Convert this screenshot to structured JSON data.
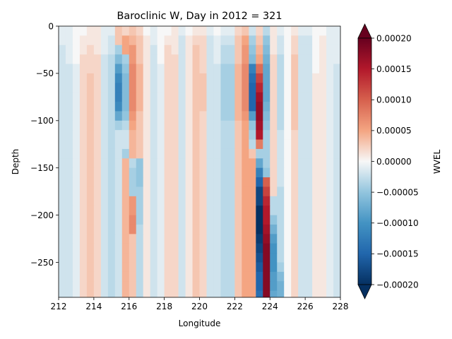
{
  "chart_data": {
    "type": "heatmap",
    "title": "Baroclinic W, Day in 2012 = 321",
    "xlabel": "Longitude",
    "ylabel": "Depth",
    "xlim": [
      212,
      228
    ],
    "ylim": [
      -287,
      0
    ],
    "x_ticks": [
      212,
      214,
      216,
      218,
      220,
      222,
      224,
      226,
      228
    ],
    "x_tick_labels": [
      "212",
      "214",
      "216",
      "218",
      "220",
      "222",
      "224",
      "226",
      "228"
    ],
    "y_ticks": [
      0,
      -50,
      -100,
      -150,
      -200,
      -250
    ],
    "y_tick_labels": [
      "0",
      "−50",
      "−100",
      "−150",
      "−200",
      "−250"
    ],
    "colormap": "RdBu_r",
    "colorbar": {
      "label": "WVEL",
      "vmin": -0.0002,
      "vmax": 0.0002,
      "extend": "both",
      "ticks": [
        0.0002,
        0.00015,
        0.0001,
        5e-05,
        0,
        -5e-05,
        -0.0001,
        -0.00015,
        -0.0002
      ],
      "tick_labels": [
        "0.00020",
        "0.00015",
        "0.00010",
        "0.00005",
        "0.00000",
        "−0.00005",
        "−0.00010",
        "−0.00015",
        "−0.00020"
      ]
    },
    "x_columns": [
      212.2,
      212.6,
      213.0,
      213.4,
      213.8,
      214.2,
      214.6,
      215.0,
      215.4,
      215.8,
      216.2,
      216.6,
      217.0,
      217.4,
      217.8,
      218.2,
      218.6,
      219.0,
      219.4,
      219.8,
      220.2,
      220.6,
      221.0,
      221.4,
      221.8,
      222.2,
      222.6,
      223.0,
      223.4,
      223.8,
      224.2,
      224.6,
      225.0,
      225.4,
      225.8,
      226.2,
      226.6,
      227.0,
      227.4,
      227.8
    ],
    "depth_layers": [
      -5,
      -15,
      -25,
      -35,
      -45,
      -55,
      -65,
      -75,
      -85,
      -95,
      -105,
      -115,
      -125,
      -135,
      -145,
      -155,
      -165,
      -175,
      -185,
      -195,
      -205,
      -215,
      -225,
      -235,
      -245,
      -255,
      -265,
      -275,
      -285
    ],
    "wvel_x1e5": [
      [
        -1,
        -1,
        0,
        0,
        1,
        1,
        -1,
        -1,
        3,
        2,
        3,
        2,
        0,
        -1,
        0,
        0,
        1,
        -1,
        0,
        1,
        1,
        -1,
        0,
        -1,
        -1,
        2,
        3,
        -2,
        2,
        -3,
        1,
        -1,
        0,
        1,
        -1,
        -1,
        0,
        0,
        -1,
        -1
      ],
      [
        -1,
        -1,
        0,
        1,
        1,
        1,
        -1,
        -2,
        3,
        5,
        4,
        3,
        1,
        -1,
        0,
        1,
        1,
        -2,
        1,
        2,
        2,
        -2,
        -1,
        -2,
        -2,
        3,
        5,
        -4,
        3,
        -5,
        1,
        -2,
        0,
        2,
        -2,
        -2,
        0,
        1,
        -1,
        -1
      ],
      [
        -2,
        -1,
        0,
        1,
        2,
        1,
        -1,
        -2,
        -4,
        5,
        6,
        3,
        1,
        -2,
        0,
        2,
        1,
        -2,
        1,
        3,
        2,
        -2,
        -1,
        -3,
        -3,
        3,
        6,
        -5,
        4,
        -6,
        1,
        -2,
        0,
        2,
        -2,
        -2,
        0,
        1,
        -1,
        -1
      ],
      [
        -2,
        -1,
        0,
        2,
        2,
        2,
        -2,
        -3,
        -6,
        -4,
        6,
        3,
        1,
        -2,
        0,
        2,
        2,
        -2,
        1,
        3,
        2,
        -2,
        -1,
        -3,
        -3,
        3,
        6,
        -6,
        5,
        -7,
        2,
        -3,
        0,
        3,
        -2,
        -2,
        0,
        1,
        -1,
        -1
      ],
      [
        -2,
        -2,
        -1,
        2,
        2,
        2,
        -2,
        -3,
        -9,
        -5,
        7,
        4,
        1,
        -2,
        -1,
        2,
        2,
        -2,
        1,
        3,
        2,
        -2,
        -2,
        -4,
        -4,
        4,
        7,
        -12,
        9,
        -8,
        2,
        -3,
        0,
        3,
        -2,
        -2,
        0,
        1,
        -1,
        -2
      ],
      [
        -2,
        -2,
        -1,
        2,
        3,
        2,
        -2,
        -3,
        -11,
        -6,
        7,
        4,
        1,
        -2,
        -1,
        2,
        2,
        -2,
        1,
        3,
        3,
        -2,
        -2,
        -4,
        -4,
        4,
        7,
        -14,
        12,
        -8,
        2,
        -3,
        0,
        3,
        -2,
        -2,
        1,
        1,
        -1,
        -2
      ],
      [
        -2,
        -2,
        -1,
        2,
        3,
        2,
        -2,
        -3,
        -12,
        -6,
        7,
        4,
        1,
        -2,
        -1,
        2,
        2,
        -2,
        1,
        3,
        3,
        -2,
        -2,
        -4,
        -4,
        4,
        7,
        -15,
        14,
        -8,
        2,
        -3,
        0,
        3,
        -2,
        -2,
        1,
        1,
        -1,
        -2
      ],
      [
        -2,
        -2,
        -1,
        2,
        3,
        2,
        -2,
        -3,
        -12,
        -6,
        7,
        4,
        1,
        -2,
        -1,
        2,
        2,
        -2,
        1,
        3,
        3,
        -2,
        -2,
        -4,
        -4,
        4,
        7,
        -15,
        16,
        -8,
        2,
        -3,
        0,
        3,
        -2,
        -2,
        1,
        1,
        -1,
        -2
      ],
      [
        -2,
        -2,
        -1,
        2,
        3,
        2,
        -2,
        -3,
        -11,
        -6,
        7,
        4,
        1,
        -2,
        -1,
        2,
        2,
        -2,
        1,
        3,
        3,
        -2,
        -2,
        -4,
        -4,
        4,
        7,
        -15,
        17,
        -7,
        2,
        -3,
        0,
        3,
        -2,
        -2,
        1,
        1,
        -1,
        -2
      ],
      [
        -2,
        -2,
        -1,
        2,
        3,
        2,
        -2,
        -3,
        -8,
        -5,
        6,
        3,
        1,
        -2,
        -1,
        2,
        2,
        -2,
        1,
        3,
        2,
        -2,
        -2,
        -4,
        -4,
        4,
        6,
        -9,
        17,
        -6,
        2,
        -3,
        0,
        3,
        -2,
        -2,
        1,
        1,
        -1,
        -2
      ],
      [
        -2,
        -2,
        -1,
        2,
        3,
        2,
        -2,
        -3,
        -4,
        -3,
        5,
        3,
        1,
        -2,
        -1,
        2,
        2,
        -2,
        1,
        3,
        2,
        -2,
        -2,
        -3,
        -3,
        3,
        5,
        -5,
        16,
        -5,
        2,
        -3,
        0,
        3,
        -2,
        -2,
        1,
        1,
        -1,
        -2
      ],
      [
        -2,
        -2,
        -1,
        2,
        3,
        2,
        -2,
        -3,
        -2,
        -2,
        4,
        3,
        1,
        -2,
        -1,
        2,
        2,
        -2,
        1,
        3,
        2,
        -2,
        -2,
        -3,
        -3,
        3,
        5,
        -4,
        15,
        -4,
        2,
        -2,
        0,
        2,
        -2,
        -2,
        1,
        1,
        -1,
        -2
      ],
      [
        -2,
        -2,
        -1,
        2,
        3,
        2,
        -2,
        -3,
        -2,
        -2,
        4,
        3,
        1,
        -2,
        -1,
        2,
        2,
        -2,
        1,
        3,
        2,
        -2,
        -2,
        -3,
        -3,
        3,
        5,
        -3,
        8,
        -4,
        2,
        -2,
        0,
        2,
        -2,
        -2,
        1,
        1,
        -1,
        -2
      ],
      [
        -2,
        -2,
        -1,
        2,
        3,
        2,
        -2,
        -3,
        -2,
        -4,
        4,
        3,
        1,
        -2,
        -1,
        2,
        2,
        -2,
        1,
        3,
        2,
        -2,
        -2,
        -3,
        -3,
        3,
        5,
        3,
        -4,
        -4,
        2,
        -2,
        0,
        2,
        -2,
        -2,
        1,
        1,
        -1,
        -2
      ],
      [
        -2,
        -2,
        -1,
        2,
        3,
        2,
        -2,
        -3,
        -2,
        4,
        -3,
        -5,
        1,
        -2,
        -1,
        2,
        2,
        -2,
        1,
        3,
        2,
        -2,
        -2,
        -3,
        -3,
        3,
        5,
        5,
        -8,
        -4,
        2,
        -2,
        0,
        2,
        -2,
        -2,
        1,
        1,
        -1,
        -2
      ],
      [
        -2,
        -2,
        -1,
        2,
        3,
        2,
        -2,
        -3,
        -2,
        4,
        -4,
        -5,
        1,
        -2,
        -1,
        2,
        2,
        -2,
        1,
        3,
        2,
        -2,
        -2,
        -3,
        -3,
        3,
        5,
        5,
        -12,
        -5,
        2,
        -2,
        0,
        2,
        -2,
        -2,
        1,
        1,
        -1,
        -2
      ],
      [
        -2,
        -2,
        -1,
        2,
        3,
        2,
        -2,
        -3,
        -2,
        4,
        -4,
        -5,
        1,
        -2,
        -1,
        2,
        2,
        -2,
        1,
        3,
        2,
        -2,
        -2,
        -3,
        -3,
        3,
        5,
        5,
        -15,
        10,
        2,
        -2,
        0,
        2,
        -2,
        -2,
        1,
        1,
        -1,
        -2
      ],
      [
        -2,
        -2,
        -1,
        2,
        3,
        2,
        -2,
        -3,
        -2,
        4,
        -4,
        -4,
        1,
        -2,
        -1,
        2,
        2,
        -2,
        1,
        3,
        2,
        -2,
        -2,
        -3,
        -3,
        3,
        5,
        5,
        -18,
        12,
        2,
        -3,
        0,
        2,
        -2,
        -2,
        1,
        1,
        -1,
        -2
      ],
      [
        -2,
        -2,
        -1,
        2,
        3,
        2,
        -2,
        -3,
        -2,
        4,
        6,
        -4,
        1,
        -2,
        -1,
        2,
        2,
        -2,
        1,
        3,
        2,
        -2,
        -2,
        -3,
        -3,
        3,
        5,
        5,
        -18,
        14,
        -3,
        -3,
        0,
        2,
        -2,
        -2,
        1,
        1,
        -1,
        -2
      ],
      [
        -2,
        -2,
        -1,
        2,
        3,
        2,
        -2,
        -3,
        -2,
        4,
        6,
        -4,
        1,
        -2,
        -1,
        2,
        2,
        -2,
        1,
        3,
        2,
        -2,
        -2,
        -3,
        -3,
        3,
        5,
        5,
        -20,
        15,
        -3,
        -3,
        0,
        2,
        -2,
        -2,
        1,
        1,
        -1,
        -2
      ],
      [
        -2,
        -2,
        -1,
        2,
        3,
        2,
        -2,
        -3,
        -2,
        4,
        7,
        -4,
        1,
        -2,
        -1,
        2,
        2,
        -2,
        1,
        3,
        2,
        -2,
        -2,
        -3,
        -3,
        3,
        5,
        5,
        -20,
        15,
        -5,
        -3,
        0,
        2,
        -2,
        -2,
        1,
        1,
        -1,
        -2
      ],
      [
        -2,
        -2,
        -1,
        2,
        3,
        2,
        -2,
        -3,
        -2,
        4,
        7,
        -3,
        1,
        -2,
        -1,
        2,
        2,
        -2,
        1,
        3,
        2,
        -2,
        -2,
        -3,
        -3,
        3,
        5,
        5,
        -20,
        16,
        -7,
        -3,
        0,
        2,
        -2,
        -2,
        1,
        1,
        -1,
        -2
      ],
      [
        -2,
        -2,
        -1,
        2,
        3,
        2,
        -2,
        -3,
        -2,
        4,
        3,
        -3,
        1,
        -2,
        -1,
        2,
        2,
        -2,
        1,
        3,
        2,
        -2,
        -2,
        -3,
        -3,
        3,
        5,
        5,
        -19,
        17,
        -9,
        -3,
        0,
        2,
        -2,
        -2,
        1,
        1,
        -1,
        -2
      ],
      [
        -2,
        -2,
        -1,
        2,
        3,
        2,
        -2,
        -3,
        -2,
        4,
        3,
        -3,
        1,
        -2,
        -1,
        2,
        2,
        -2,
        1,
        3,
        2,
        -2,
        -2,
        -3,
        -3,
        3,
        5,
        5,
        -18,
        18,
        -10,
        -3,
        0,
        2,
        -2,
        -2,
        1,
        1,
        -1,
        -2
      ],
      [
        -2,
        -2,
        -1,
        2,
        3,
        2,
        -2,
        -3,
        -2,
        4,
        3,
        -3,
        1,
        -2,
        -1,
        2,
        2,
        -2,
        1,
        3,
        2,
        -2,
        -2,
        -3,
        -3,
        3,
        5,
        5,
        -17,
        18,
        -10,
        -3,
        0,
        2,
        -2,
        -2,
        1,
        1,
        -1,
        -2
      ],
      [
        -2,
        -2,
        -1,
        2,
        3,
        2,
        -2,
        -3,
        -2,
        4,
        3,
        -3,
        1,
        -2,
        -1,
        2,
        2,
        -2,
        1,
        3,
        2,
        -2,
        -2,
        -3,
        -3,
        3,
        5,
        5,
        -16,
        18,
        -10,
        -4,
        0,
        2,
        -2,
        -2,
        1,
        1,
        -1,
        -2
      ],
      [
        -2,
        -2,
        -1,
        2,
        3,
        2,
        -2,
        -3,
        -2,
        4,
        3,
        -3,
        1,
        -2,
        -1,
        2,
        2,
        -2,
        1,
        3,
        2,
        -2,
        -2,
        -3,
        -3,
        3,
        5,
        5,
        -15,
        18,
        -9,
        -6,
        0,
        2,
        -2,
        -2,
        1,
        1,
        -1,
        -2
      ],
      [
        -2,
        -2,
        -1,
        2,
        3,
        2,
        -2,
        -3,
        -2,
        4,
        3,
        -3,
        1,
        -2,
        -1,
        2,
        2,
        -2,
        1,
        3,
        2,
        -2,
        -2,
        -3,
        -3,
        3,
        5,
        5,
        -15,
        18,
        -9,
        -7,
        0,
        2,
        -2,
        -2,
        1,
        1,
        -1,
        -2
      ],
      [
        -2,
        -2,
        -1,
        2,
        3,
        2,
        -2,
        -3,
        -2,
        4,
        3,
        -3,
        1,
        -2,
        -1,
        2,
        2,
        -2,
        1,
        3,
        2,
        -2,
        -2,
        -3,
        -3,
        3,
        5,
        5,
        -14,
        18,
        -8,
        -7,
        0,
        2,
        -2,
        -2,
        1,
        1,
        -1,
        -2
      ]
    ]
  }
}
